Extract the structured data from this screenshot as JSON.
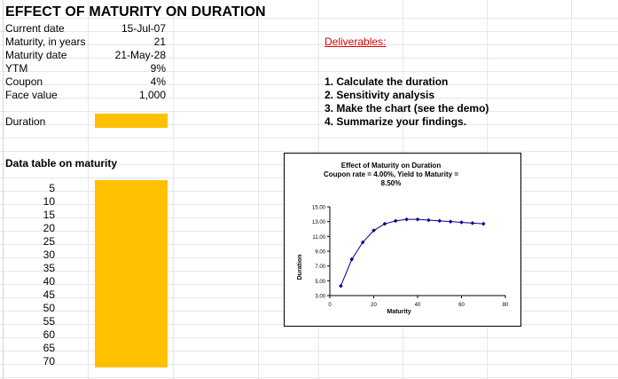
{
  "title": "EFFECT OF MATURITY ON DURATION",
  "inputs": [
    {
      "label": "Current date",
      "value": "15-Jul-07"
    },
    {
      "label": "Maturity, in years",
      "value": "21"
    },
    {
      "label": "Maturity date",
      "value": "21-May-28"
    },
    {
      "label": "YTM",
      "value": "9%"
    },
    {
      "label": "Coupon",
      "value": "4%"
    },
    {
      "label": "Face value",
      "value": "1,000"
    }
  ],
  "duration_label": "Duration",
  "data_table_title": "Data table on maturity",
  "maturities": [
    "5",
    "10",
    "15",
    "20",
    "25",
    "30",
    "35",
    "40",
    "45",
    "50",
    "55",
    "60",
    "65",
    "70"
  ],
  "deliverables": {
    "title": "Deliverables:",
    "items": [
      "1. Calculate the duration",
      "2. Sensitivity analysis",
      "3. Make the chart (see the demo)",
      "4. Summarize your findings."
    ]
  },
  "colors": {
    "fill": "#ffc000",
    "series": "#00008b",
    "red": "#e00000"
  },
  "chart_data": {
    "type": "line",
    "title": "Effect of Maturity  on Duration",
    "subtitle_line1": "Coupon rate = 4.00%, Yield to Maturity =",
    "subtitle_line2": "8.50%",
    "xlabel": "Maturity",
    "ylabel": "Duration",
    "xlim": [
      0,
      80
    ],
    "ylim": [
      3,
      15
    ],
    "xticks": [
      "0",
      "20",
      "40",
      "60",
      "80"
    ],
    "yticks": [
      "3.00",
      "5.00",
      "7.00",
      "9.00",
      "11.00",
      "13.00",
      "15.00"
    ],
    "x": [
      5,
      10,
      15,
      20,
      25,
      30,
      35,
      40,
      45,
      50,
      55,
      60,
      65,
      70
    ],
    "series": [
      {
        "values": [
          4.3,
          7.9,
          10.2,
          11.8,
          12.7,
          13.1,
          13.3,
          13.3,
          13.2,
          13.1,
          13.0,
          12.9,
          12.8,
          12.7
        ]
      }
    ],
    "grid": false,
    "legend": "none"
  }
}
